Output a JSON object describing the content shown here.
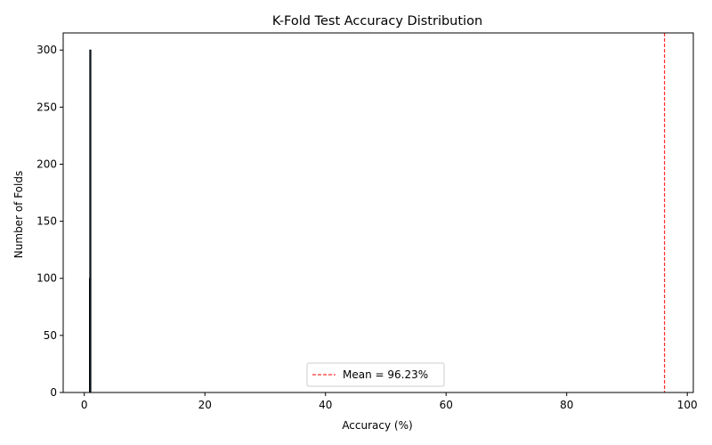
{
  "chart_data": {
    "type": "bar",
    "title": "K-Fold Test Accuracy Distribution",
    "xlabel": "Accuracy (%)",
    "ylabel": "Number of Folds",
    "xlim": [
      -3.5,
      101
    ],
    "ylim": [
      0,
      315
    ],
    "x_ticks": [
      0,
      20,
      40,
      60,
      80,
      100
    ],
    "y_ticks": [
      0,
      50,
      100,
      150,
      200,
      250,
      300
    ],
    "bars": [
      {
        "x": 0.95,
        "count": 100
      },
      {
        "x": 1.0,
        "count": 300
      }
    ],
    "bar_color": "#1f77b4",
    "edge_color": "#000000",
    "mean_line": {
      "value": 96.23,
      "label": "Mean = 96.23%",
      "color": "#ff0000",
      "style": "dashed"
    },
    "legend": {
      "entries": [
        "Mean = 96.23%"
      ],
      "position": "lower center"
    },
    "grid": false
  }
}
